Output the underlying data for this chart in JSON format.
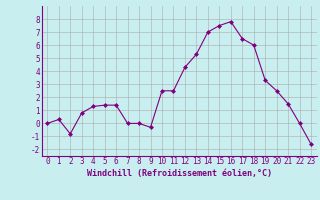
{
  "x": [
    0,
    1,
    2,
    3,
    4,
    5,
    6,
    7,
    8,
    9,
    10,
    11,
    12,
    13,
    14,
    15,
    16,
    17,
    18,
    19,
    20,
    21,
    22,
    23
  ],
  "y": [
    0,
    0.3,
    -0.8,
    0.8,
    1.3,
    1.4,
    1.4,
    0.0,
    0.0,
    -0.3,
    2.5,
    2.5,
    4.3,
    5.3,
    7.0,
    7.5,
    7.8,
    6.5,
    6.0,
    3.3,
    2.5,
    1.5,
    0.0,
    -1.6
  ],
  "line_color": "#800080",
  "marker": "D",
  "marker_size": 2,
  "bg_color": "#c8eef0",
  "grid_color": "#aaaaaa",
  "xlabel": "Windchill (Refroidissement éolien,°C)",
  "xlim": [
    -0.5,
    23.5
  ],
  "ylim": [
    -2.5,
    9.0
  ],
  "yticks": [
    -2,
    -1,
    0,
    1,
    2,
    3,
    4,
    5,
    6,
    7,
    8
  ],
  "xticks": [
    0,
    1,
    2,
    3,
    4,
    5,
    6,
    7,
    8,
    9,
    10,
    11,
    12,
    13,
    14,
    15,
    16,
    17,
    18,
    19,
    20,
    21,
    22,
    23
  ],
  "tick_fontsize": 5.5,
  "xlabel_fontsize": 6.0,
  "linewidth": 0.8
}
